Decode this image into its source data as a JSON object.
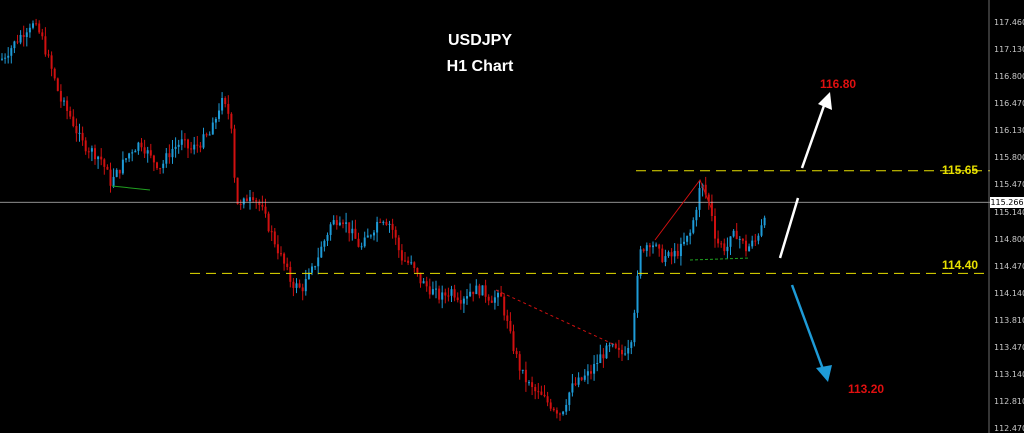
{
  "chart_data": {
    "type": "candlestick",
    "title": "USDJPY",
    "subtitle": "H1 Chart",
    "ylim": [
      112.49,
      117.6
    ],
    "yticks": [
      "117.460",
      "117.130",
      "116.800",
      "116.470",
      "116.130",
      "115.800",
      "115.470",
      "115.140",
      "114.800",
      "114.470",
      "114.140",
      "113.810",
      "113.470",
      "113.140",
      "112.810",
      "112.470"
    ],
    "current_price": "115.266",
    "current_price_value": 115.266,
    "resistance": {
      "value": 115.65,
      "label": "115.65"
    },
    "support": {
      "value": 114.4,
      "label": "114.40"
    },
    "target_up": {
      "value": 116.8,
      "label": "116.80"
    },
    "target_down": {
      "value": 113.2,
      "label": "113.20"
    },
    "colors": {
      "bull": "#1e9bd7",
      "bear": "#d01010",
      "level": "#e8e000",
      "target": "#e01010",
      "arrow_up": "#ffffff",
      "arrow_down": "#1e9bd7"
    },
    "close_path": [
      [
        0,
        117.0
      ],
      [
        10,
        117.15
      ],
      [
        20,
        117.3
      ],
      [
        30,
        117.45
      ],
      [
        40,
        117.3
      ],
      [
        50,
        116.9
      ],
      [
        60,
        116.5
      ],
      [
        70,
        116.3
      ],
      [
        80,
        116.0
      ],
      [
        90,
        115.9
      ],
      [
        100,
        115.8
      ],
      [
        110,
        115.5
      ],
      [
        120,
        115.7
      ],
      [
        130,
        115.9
      ],
      [
        140,
        116.0
      ],
      [
        150,
        115.8
      ],
      [
        160,
        115.7
      ],
      [
        170,
        115.9
      ],
      [
        180,
        116.0
      ],
      [
        190,
        115.9
      ],
      [
        200,
        116.0
      ],
      [
        210,
        116.1
      ],
      [
        220,
        116.5
      ],
      [
        230,
        116.3
      ],
      [
        235,
        115.3
      ],
      [
        240,
        115.2
      ],
      [
        250,
        115.4
      ],
      [
        260,
        115.2
      ],
      [
        270,
        114.9
      ],
      [
        280,
        114.6
      ],
      [
        290,
        114.3
      ],
      [
        300,
        114.2
      ],
      [
        310,
        114.4
      ],
      [
        320,
        114.7
      ],
      [
        330,
        115.0
      ],
      [
        340,
        115.1
      ],
      [
        350,
        114.9
      ],
      [
        360,
        114.7
      ],
      [
        370,
        114.9
      ],
      [
        380,
        115.1
      ],
      [
        390,
        115.0
      ],
      [
        400,
        114.6
      ],
      [
        410,
        114.5
      ],
      [
        420,
        114.3
      ],
      [
        430,
        114.2
      ],
      [
        440,
        114.1
      ],
      [
        450,
        114.2
      ],
      [
        460,
        114.1
      ],
      [
        470,
        114.2
      ],
      [
        480,
        114.2
      ],
      [
        490,
        114.1
      ],
      [
        500,
        114.1
      ],
      [
        510,
        113.6
      ],
      [
        520,
        113.2
      ],
      [
        530,
        113.0
      ],
      [
        540,
        112.9
      ],
      [
        550,
        112.8
      ],
      [
        560,
        112.7
      ],
      [
        570,
        113.0
      ],
      [
        580,
        113.1
      ],
      [
        590,
        113.2
      ],
      [
        600,
        113.4
      ],
      [
        610,
        113.5
      ],
      [
        620,
        113.4
      ],
      [
        630,
        113.6
      ],
      [
        640,
        114.7
      ],
      [
        650,
        114.8
      ],
      [
        660,
        114.6
      ],
      [
        670,
        114.6
      ],
      [
        680,
        114.7
      ],
      [
        690,
        114.9
      ],
      [
        700,
        115.5
      ],
      [
        710,
        115.2
      ],
      [
        715,
        114.8
      ],
      [
        725,
        114.7
      ],
      [
        735,
        114.9
      ],
      [
        745,
        114.7
      ],
      [
        755,
        114.8
      ],
      [
        765,
        115.2
      ]
    ]
  }
}
